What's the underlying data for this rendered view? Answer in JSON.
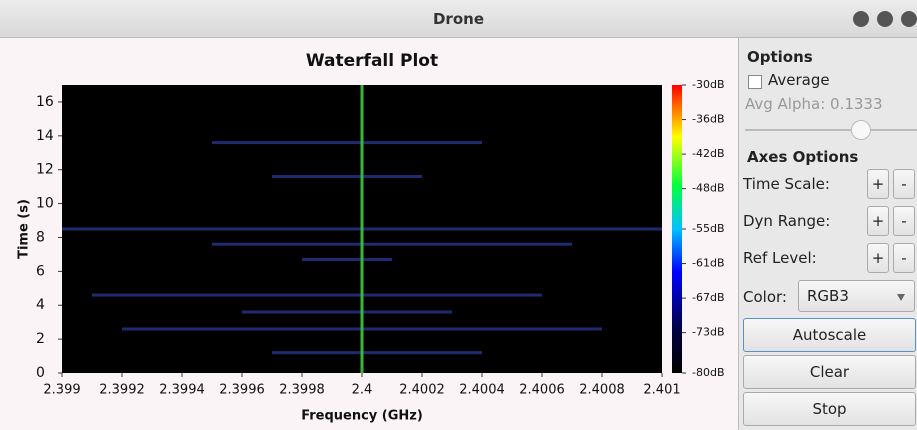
{
  "window": {
    "title": "Drone"
  },
  "chart_data": {
    "type": "heatmap",
    "title": "Waterfall Plot",
    "xlabel": "Frequency (GHz)",
    "ylabel": "Time (s)",
    "xlim": [
      2.399,
      2.401
    ],
    "xticks": [
      2.399,
      2.3992,
      2.3994,
      2.3996,
      2.3998,
      2.4,
      2.4002,
      2.4004,
      2.4006,
      2.4008,
      2.401
    ],
    "ylim": [
      0,
      17
    ],
    "yticks": [
      0,
      2,
      4,
      6,
      8,
      10,
      12,
      14,
      16
    ],
    "colorbar_lim": [
      -80,
      -30
    ],
    "colorbar_ticks": [
      {
        "value": -30,
        "label": "-30dB"
      },
      {
        "value": -36,
        "label": "-36dB"
      },
      {
        "value": -42,
        "label": "-42dB"
      },
      {
        "value": -48,
        "label": "-48dB"
      },
      {
        "value": -55,
        "label": "-55dB"
      },
      {
        "value": -61,
        "label": "-61dB"
      },
      {
        "value": -67,
        "label": "-67dB"
      },
      {
        "value": -73,
        "label": "-73dB"
      },
      {
        "value": -80,
        "label": "-80dB"
      }
    ],
    "carrier": 2.4,
    "carrier_color": "#3cb43c",
    "streak_color": "#22307a",
    "streaks": [
      {
        "time": 13.6,
        "from": 2.3995,
        "to": 2.4004
      },
      {
        "time": 11.6,
        "from": 2.3997,
        "to": 2.4002
      },
      {
        "time": 8.5,
        "from": 2.399,
        "to": 2.401
      },
      {
        "time": 7.6,
        "from": 2.3995,
        "to": 2.4007
      },
      {
        "time": 6.7,
        "from": 2.3998,
        "to": 2.4001
      },
      {
        "time": 4.6,
        "from": 2.3991,
        "to": 2.4006
      },
      {
        "time": 3.6,
        "from": 2.3996,
        "to": 2.4003
      },
      {
        "time": 2.6,
        "from": 2.3992,
        "to": 2.4008
      },
      {
        "time": 1.2,
        "from": 2.3997,
        "to": 2.4004
      }
    ]
  },
  "panel": {
    "options_title": "Options",
    "average": "Average",
    "avg_alpha": "Avg Alpha: 0.1333",
    "axes_title": "Axes Options",
    "rows": [
      {
        "label": "Time Scale:",
        "plus": "+",
        "minus": "-"
      },
      {
        "label": "Dyn Range:",
        "plus": "+",
        "minus": "-"
      },
      {
        "label": "Ref Level:",
        "plus": "+",
        "minus": "-"
      }
    ],
    "color_label": "Color:",
    "color_value": "RGB3",
    "buttons": [
      "Autoscale",
      "Clear",
      "Stop"
    ]
  }
}
